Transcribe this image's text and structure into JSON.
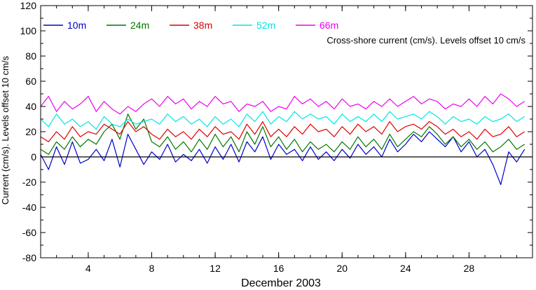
{
  "chart_data": {
    "type": "line",
    "title": "",
    "annotation": "Cross-shore current (cm/s). Levels offset 10 cm/s",
    "xlabel": "December 2003",
    "ylabel": "Current (cm/s). Levels offset 10 cm/s",
    "xlim": [
      1,
      32
    ],
    "ylim": [
      -80,
      120
    ],
    "x_ticks": [
      "4",
      "8",
      "12",
      "16",
      "20",
      "24",
      "28"
    ],
    "x_tick_values": [
      4,
      8,
      12,
      16,
      20,
      24,
      28
    ],
    "y_ticks": [
      "-80",
      "-60",
      "-40",
      "-20",
      "0",
      "20",
      "40",
      "60",
      "80",
      "100",
      "120"
    ],
    "y_tick_values": [
      -80,
      -60,
      -40,
      -20,
      0,
      20,
      40,
      60,
      80,
      100,
      120
    ],
    "zero_line": true,
    "grid": false,
    "legend_position": "top-left",
    "series": [
      {
        "name": "10m",
        "color": "#0000cc",
        "x": [
          1,
          1.5,
          2,
          2.5,
          3,
          3.5,
          4,
          4.5,
          5,
          5.5,
          6,
          6.5,
          7,
          7.5,
          8,
          8.5,
          9,
          9.5,
          10,
          10.5,
          11,
          11.5,
          12,
          12.5,
          13,
          13.5,
          14,
          14.5,
          15,
          15.5,
          16,
          16.5,
          17,
          17.5,
          18,
          18.5,
          19,
          19.5,
          20,
          20.5,
          21,
          21.5,
          22,
          22.5,
          23,
          23.5,
          24,
          24.5,
          25,
          25.5,
          26,
          26.5,
          27,
          27.5,
          28,
          28.5,
          29,
          29.5,
          30,
          30.5,
          31,
          31.5
        ],
        "y": [
          2,
          -10,
          8,
          -6,
          12,
          -5,
          -2,
          6,
          -3,
          14,
          -8,
          18,
          6,
          -6,
          4,
          -2,
          10,
          -4,
          2,
          -3,
          6,
          -5,
          8,
          -2,
          10,
          -4,
          12,
          4,
          16,
          -2,
          10,
          2,
          6,
          -3,
          8,
          -2,
          4,
          -3,
          6,
          -1,
          10,
          2,
          8,
          0,
          14,
          4,
          10,
          18,
          12,
          20,
          14,
          8,
          16,
          4,
          12,
          0,
          6,
          -6,
          -22,
          4,
          -4,
          6
        ]
      },
      {
        "name": "24m",
        "color": "#007700",
        "x": [
          1,
          1.5,
          2,
          2.5,
          3,
          3.5,
          4,
          4.5,
          5,
          5.5,
          6,
          6.5,
          7,
          7.5,
          8,
          8.5,
          9,
          9.5,
          10,
          10.5,
          11,
          11.5,
          12,
          12.5,
          13,
          13.5,
          14,
          14.5,
          15,
          15.5,
          16,
          16.5,
          17,
          17.5,
          18,
          18.5,
          19,
          19.5,
          20,
          20.5,
          21,
          21.5,
          22,
          22.5,
          23,
          23.5,
          24,
          24.5,
          25,
          25.5,
          26,
          26.5,
          27,
          27.5,
          28,
          28.5,
          29,
          29.5,
          30,
          30.5,
          31,
          31.5
        ],
        "y": [
          6,
          2,
          12,
          6,
          16,
          8,
          14,
          10,
          20,
          26,
          14,
          34,
          22,
          30,
          12,
          8,
          16,
          6,
          12,
          4,
          14,
          6,
          18,
          8,
          16,
          4,
          20,
          10,
          24,
          8,
          16,
          6,
          14,
          4,
          12,
          6,
          10,
          4,
          12,
          6,
          16,
          8,
          14,
          6,
          18,
          8,
          14,
          20,
          16,
          24,
          18,
          10,
          16,
          8,
          14,
          6,
          12,
          4,
          8,
          14,
          6,
          10
        ]
      },
      {
        "name": "38m",
        "color": "#dd0000",
        "x": [
          1,
          1.5,
          2,
          2.5,
          3,
          3.5,
          4,
          4.5,
          5,
          5.5,
          6,
          6.5,
          7,
          7.5,
          8,
          8.5,
          9,
          9.5,
          10,
          10.5,
          11,
          11.5,
          12,
          12.5,
          13,
          13.5,
          14,
          14.5,
          15,
          15.5,
          16,
          16.5,
          17,
          17.5,
          18,
          18.5,
          19,
          19.5,
          20,
          20.5,
          21,
          21.5,
          22,
          22.5,
          23,
          23.5,
          24,
          24.5,
          25,
          25.5,
          26,
          26.5,
          27,
          27.5,
          28,
          28.5,
          29,
          29.5,
          30,
          30.5,
          31,
          31.5
        ],
        "y": [
          16,
          12,
          20,
          14,
          24,
          16,
          20,
          18,
          26,
          22,
          18,
          28,
          20,
          24,
          18,
          14,
          22,
          16,
          20,
          14,
          22,
          16,
          24,
          18,
          20,
          14,
          26,
          18,
          28,
          16,
          22,
          16,
          24,
          18,
          26,
          20,
          22,
          16,
          24,
          18,
          26,
          20,
          24,
          18,
          28,
          20,
          24,
          26,
          22,
          28,
          24,
          18,
          22,
          16,
          20,
          14,
          22,
          16,
          18,
          24,
          16,
          20
        ]
      },
      {
        "name": "52m",
        "color": "#00e5e5",
        "x": [
          1,
          1.5,
          2,
          2.5,
          3,
          3.5,
          4,
          4.5,
          5,
          5.5,
          6,
          6.5,
          7,
          7.5,
          8,
          8.5,
          9,
          9.5,
          10,
          10.5,
          11,
          11.5,
          12,
          12.5,
          13,
          13.5,
          14,
          14.5,
          15,
          15.5,
          16,
          16.5,
          17,
          17.5,
          18,
          18.5,
          19,
          19.5,
          20,
          20.5,
          21,
          21.5,
          22,
          22.5,
          23,
          23.5,
          24,
          24.5,
          25,
          25.5,
          26,
          26.5,
          27,
          27.5,
          28,
          28.5,
          29,
          29.5,
          30,
          30.5,
          31,
          31.5
        ],
        "y": [
          30,
          24,
          34,
          26,
          30,
          24,
          28,
          22,
          32,
          26,
          24,
          30,
          26,
          28,
          30,
          26,
          34,
          28,
          32,
          26,
          30,
          24,
          32,
          26,
          30,
          24,
          34,
          28,
          36,
          26,
          32,
          28,
          36,
          30,
          34,
          30,
          32,
          26,
          34,
          28,
          32,
          28,
          34,
          28,
          36,
          30,
          32,
          34,
          30,
          36,
          32,
          26,
          32,
          28,
          30,
          26,
          32,
          28,
          30,
          34,
          28,
          32
        ]
      },
      {
        "name": "66m",
        "color": "#ee00ee",
        "x": [
          1,
          1.5,
          2,
          2.5,
          3,
          3.5,
          4,
          4.5,
          5,
          5.5,
          6,
          6.5,
          7,
          7.5,
          8,
          8.5,
          9,
          9.5,
          10,
          10.5,
          11,
          11.5,
          12,
          12.5,
          13,
          13.5,
          14,
          14.5,
          15,
          15.5,
          16,
          16.5,
          17,
          17.5,
          18,
          18.5,
          19,
          19.5,
          20,
          20.5,
          21,
          21.5,
          22,
          22.5,
          23,
          23.5,
          24,
          24.5,
          25,
          25.5,
          26,
          26.5,
          27,
          27.5,
          28,
          28.5,
          29,
          29.5,
          30,
          30.5,
          31,
          31.5
        ],
        "y": [
          40,
          48,
          36,
          44,
          38,
          42,
          48,
          36,
          44,
          38,
          34,
          40,
          36,
          42,
          46,
          40,
          48,
          42,
          46,
          38,
          44,
          40,
          48,
          42,
          44,
          36,
          42,
          40,
          44,
          36,
          40,
          38,
          48,
          42,
          46,
          40,
          44,
          38,
          46,
          40,
          42,
          38,
          44,
          40,
          46,
          40,
          44,
          48,
          42,
          46,
          44,
          38,
          42,
          40,
          46,
          40,
          48,
          42,
          50,
          46,
          40,
          44
        ]
      }
    ]
  }
}
